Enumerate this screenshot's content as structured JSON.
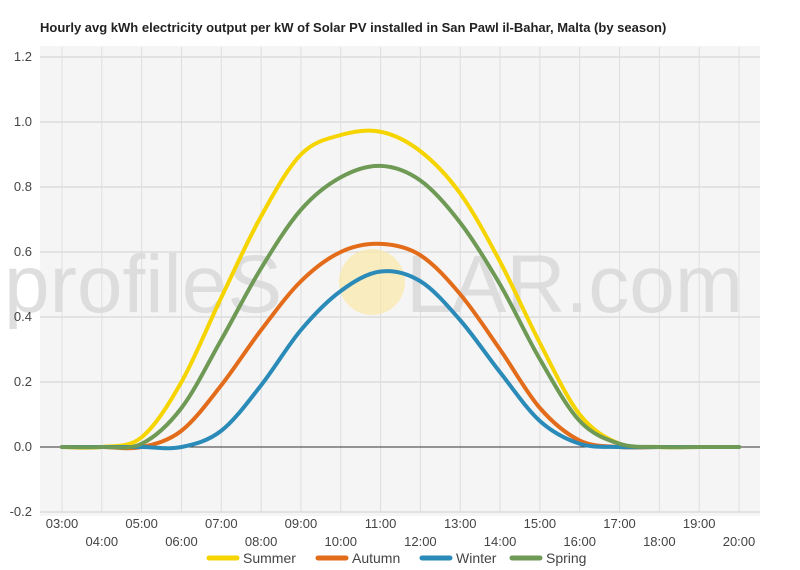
{
  "chart_data": {
    "type": "line",
    "title": "Hourly avg kWh electricity output per kW of Solar PV installed in San Pawl il-Bahar, Malta (by season)",
    "xlabel": "",
    "ylabel": "",
    "x": [
      "03:00",
      "04:00",
      "05:00",
      "06:00",
      "07:00",
      "08:00",
      "09:00",
      "10:00",
      "11:00",
      "12:00",
      "13:00",
      "14:00",
      "15:00",
      "16:00",
      "17:00",
      "18:00",
      "19:00",
      "20:00"
    ],
    "ylim": [
      -0.2,
      1.2
    ],
    "yticks": [
      "-0.2",
      "0.0",
      "0.2",
      "0.4",
      "0.6",
      "0.8",
      "1.0",
      "1.2"
    ],
    "grid": true,
    "legend_position": "bottom",
    "series": [
      {
        "name": "Summer",
        "color": "#f5d400",
        "values": [
          0,
          0,
          0.03,
          0.2,
          0.46,
          0.71,
          0.9,
          0.96,
          0.97,
          0.91,
          0.78,
          0.57,
          0.32,
          0.1,
          0.01,
          0,
          0,
          0
        ]
      },
      {
        "name": "Autumn",
        "color": "#e36c1b",
        "values": [
          0,
          0,
          0,
          0.05,
          0.19,
          0.36,
          0.51,
          0.6,
          0.625,
          0.59,
          0.47,
          0.3,
          0.12,
          0.02,
          0,
          0,
          0,
          0
        ]
      },
      {
        "name": "Winter",
        "color": "#2a8ab8",
        "values": [
          0,
          0,
          0,
          0,
          0.05,
          0.19,
          0.36,
          0.48,
          0.54,
          0.51,
          0.39,
          0.23,
          0.08,
          0.01,
          0,
          0,
          0,
          0
        ]
      },
      {
        "name": "Spring",
        "color": "#6e9a55",
        "values": [
          0,
          0,
          0.01,
          0.12,
          0.33,
          0.55,
          0.73,
          0.83,
          0.865,
          0.82,
          0.69,
          0.5,
          0.27,
          0.08,
          0.01,
          0,
          0,
          0
        ]
      }
    ],
    "watermark": {
      "left": "profileS",
      "right": "LAR.com"
    }
  }
}
